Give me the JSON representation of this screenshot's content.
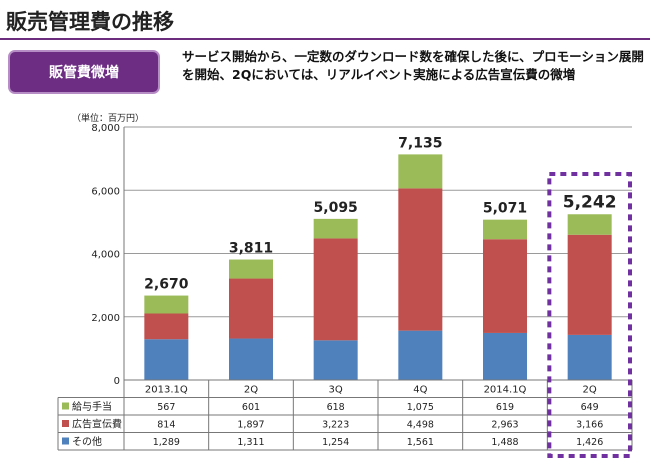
{
  "page": {
    "title": "販売管理費の推移",
    "badge": "販管費微増",
    "description": "サービス開始から、一定数のダウンロード数を確保した後に、プロモーション展開を開始、2Qにおいては、リアルイベント実施による広告宣伝費の微増"
  },
  "colors": {
    "salary": "#9bbb59",
    "ad": "#c0504d",
    "other": "#4f81bd",
    "accent": "#6c2d82",
    "highlight_border": "#7030a0"
  },
  "chart_data": {
    "type": "bar",
    "stacked": true,
    "unit_label": "（単位：百万円）",
    "categories": [
      "2013.1Q",
      "2Q",
      "3Q",
      "4Q",
      "2014.1Q",
      "2Q"
    ],
    "series": [
      {
        "name": "その他",
        "values": [
          1289,
          1311,
          1254,
          1561,
          1488,
          1426
        ],
        "display": [
          "1,289",
          "1,311",
          "1,254",
          "1,561",
          "1,488",
          "1,426"
        ]
      },
      {
        "name": "広告宣伝費",
        "values": [
          814,
          1897,
          3223,
          4498,
          2963,
          3166
        ],
        "display": [
          "814",
          "1,897",
          "3,223",
          "4,498",
          "2,963",
          "3,166"
        ]
      },
      {
        "name": "給与手当",
        "values": [
          567,
          601,
          618,
          1075,
          619,
          649
        ],
        "display": [
          "567",
          "601",
          "618",
          "1,075",
          "619",
          "649"
        ]
      }
    ],
    "totals": [
      "2,670",
      "3,811",
      "5,095",
      "7,135",
      "5,071",
      "5,242"
    ],
    "ylim": [
      0,
      8000
    ],
    "yticks": [
      0,
      2000,
      4000,
      6000,
      8000
    ],
    "ytick_labels": [
      "0",
      "2,000",
      "4,000",
      "6,000",
      "8,000"
    ],
    "grid": true,
    "highlighted_category_index": 5
  }
}
